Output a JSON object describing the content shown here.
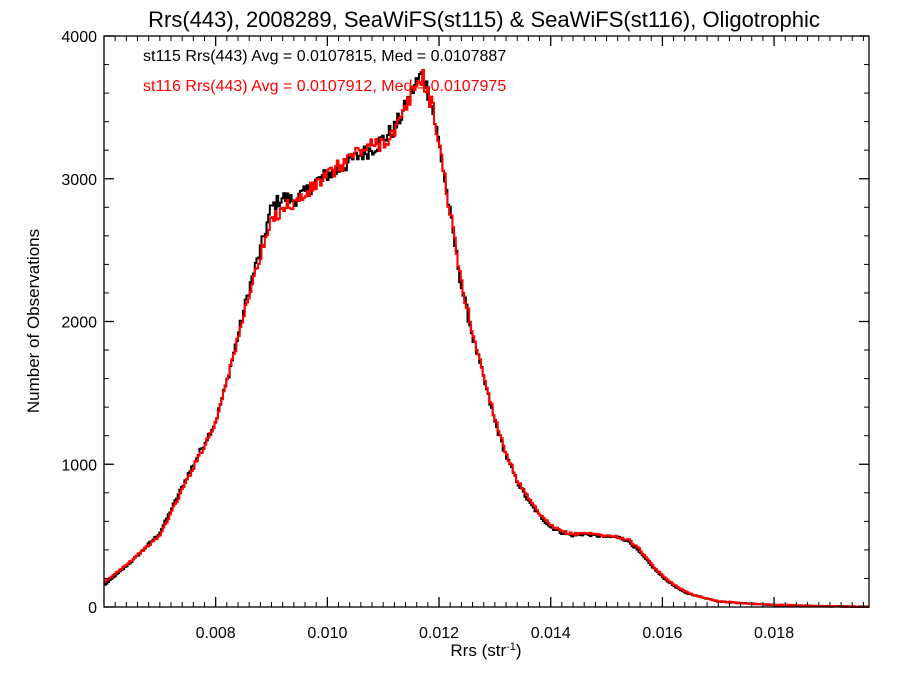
{
  "chart_data": {
    "type": "line",
    "style": "histogram-step",
    "title": "Rrs(443), 2008289, SeaWiFS(st115) & SeaWiFS(st116), Oligotrophic",
    "xlabel_main": "Rrs (str",
    "xlabel_sup": "-1",
    "xlabel_close": ")",
    "ylabel": "Number of Observations",
    "xlim": [
      0.006,
      0.0197
    ],
    "ylim": [
      0,
      4000
    ],
    "xticks": [
      0.008,
      0.01,
      0.012,
      0.014,
      0.016,
      0.018
    ],
    "xtick_labels": [
      "0.008",
      "0.010",
      "0.012",
      "0.014",
      "0.016",
      "0.018"
    ],
    "yticks": [
      0,
      1000,
      2000,
      3000,
      4000
    ],
    "ytick_labels": [
      "0",
      "1000",
      "2000",
      "3000",
      "4000"
    ],
    "stats": [
      {
        "text": "st115 Rrs(443) Avg = 0.0107815, Med = 0.0107887",
        "color": "#000000"
      },
      {
        "text": "st116 Rrs(443) Avg = 0.0107912, Med = 0.0107975",
        "color": "#ff0000"
      }
    ],
    "series": [
      {
        "color": "#000000",
        "x": [
          0.006,
          0.0065,
          0.007,
          0.0075,
          0.008,
          0.0082,
          0.0084,
          0.0086,
          0.0088,
          0.009,
          0.0092,
          0.0094,
          0.0096,
          0.0098,
          0.01,
          0.0102,
          0.0104,
          0.0106,
          0.0108,
          0.011,
          0.0112,
          0.0114,
          0.0115,
          0.0116,
          0.0117,
          0.0118,
          0.0119,
          0.012,
          0.0121,
          0.0122,
          0.0123,
          0.0124,
          0.0126,
          0.0128,
          0.013,
          0.0132,
          0.0134,
          0.0136,
          0.0138,
          0.014,
          0.0142,
          0.0144,
          0.0146,
          0.0148,
          0.015,
          0.0152,
          0.0154,
          0.0156,
          0.0158,
          0.016,
          0.0162,
          0.0164,
          0.0166,
          0.0168,
          0.017,
          0.0175,
          0.018,
          0.0185,
          0.019,
          0.0197
        ],
        "values": [
          150,
          320,
          520,
          920,
          1300,
          1580,
          1900,
          2230,
          2500,
          2800,
          2870,
          2850,
          2900,
          2980,
          3030,
          3060,
          3120,
          3170,
          3210,
          3280,
          3350,
          3500,
          3600,
          3680,
          3730,
          3620,
          3450,
          3250,
          3000,
          2750,
          2500,
          2250,
          1900,
          1600,
          1300,
          1060,
          880,
          740,
          640,
          560,
          520,
          500,
          510,
          500,
          490,
          490,
          460,
          380,
          290,
          210,
          150,
          100,
          80,
          60,
          40,
          25,
          15,
          10,
          5,
          2
        ]
      },
      {
        "color": "#ff0000",
        "x": [
          0.006,
          0.0065,
          0.007,
          0.0075,
          0.008,
          0.0082,
          0.0084,
          0.0086,
          0.0088,
          0.009,
          0.0092,
          0.0094,
          0.0096,
          0.0098,
          0.01,
          0.0102,
          0.0104,
          0.0106,
          0.0108,
          0.011,
          0.0112,
          0.0114,
          0.0115,
          0.0116,
          0.0117,
          0.0118,
          0.0119,
          0.012,
          0.0121,
          0.0122,
          0.0123,
          0.0124,
          0.0126,
          0.0128,
          0.013,
          0.0132,
          0.0134,
          0.0136,
          0.0138,
          0.014,
          0.0142,
          0.0144,
          0.0146,
          0.0148,
          0.015,
          0.0152,
          0.0154,
          0.0156,
          0.0158,
          0.016,
          0.0162,
          0.0164,
          0.0166,
          0.0168,
          0.017,
          0.0175,
          0.018,
          0.0185,
          0.019,
          0.0197
        ],
        "values": [
          170,
          330,
          500,
          900,
          1290,
          1600,
          1870,
          2200,
          2450,
          2700,
          2800,
          2830,
          2880,
          2960,
          3020,
          3080,
          3150,
          3200,
          3230,
          3260,
          3320,
          3480,
          3590,
          3660,
          3720,
          3610,
          3470,
          3260,
          3010,
          2760,
          2520,
          2270,
          1930,
          1620,
          1330,
          1080,
          890,
          760,
          650,
          570,
          530,
          510,
          520,
          510,
          500,
          490,
          470,
          400,
          300,
          220,
          160,
          110,
          80,
          60,
          40,
          25,
          15,
          10,
          5,
          2
        ]
      }
    ]
  }
}
